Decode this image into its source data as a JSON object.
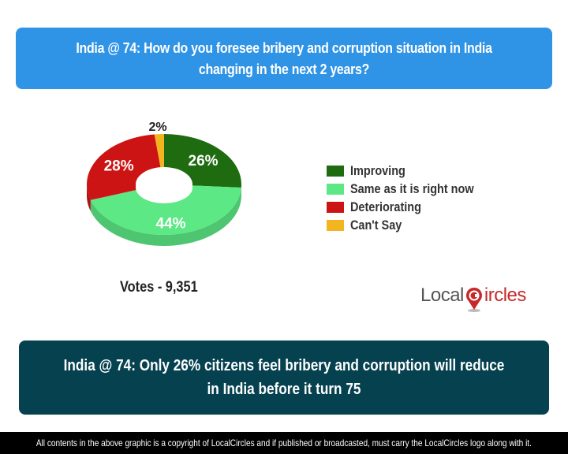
{
  "question": "India @ 74: How do you foresee bribery and corruption situation in India changing in the next 2 years?",
  "votes_label": "Votes - 9,351",
  "logo": {
    "part1": "Local",
    "part2": "ircles"
  },
  "headline": "India @ 74: Only 26% citizens feel bribery and corruption will reduce in India before it turn 75",
  "footer": "All contents in the above graphic is a copyright of LocalCircles and if published or broadcasted, must carry the LocalCircles logo along with it.",
  "legend": [
    {
      "label": "Improving",
      "color": "#1e6b10"
    },
    {
      "label": "Same as it is right now",
      "color": "#5ce884"
    },
    {
      "label": "Deteriorating",
      "color": "#cc1414"
    },
    {
      "label": "Can't Say",
      "color": "#f2b51f"
    }
  ],
  "chart_data": {
    "type": "pie",
    "title": "India @ 74: How do you foresee bribery and corruption situation in India changing in the next 2 years?",
    "categories": [
      "Improving",
      "Same as it is right now",
      "Deteriorating",
      "Can't Say"
    ],
    "values": [
      26,
      44,
      28,
      2
    ],
    "labels": [
      "26%",
      "44%",
      "28%",
      "2%"
    ],
    "colors": [
      "#1e6b10",
      "#5ce884",
      "#cc1414",
      "#f2b51f"
    ],
    "style": "3D donut",
    "legend_position": "right",
    "total_votes": 9351
  }
}
